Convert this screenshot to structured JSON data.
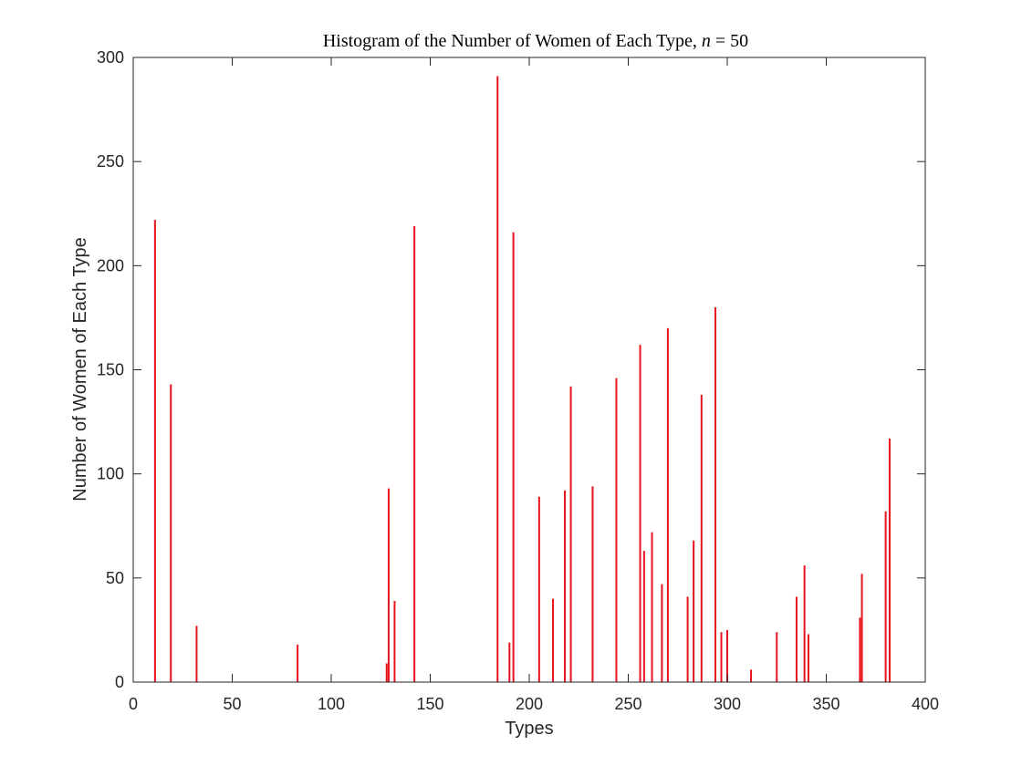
{
  "chart_data": {
    "type": "bar",
    "title": "Histogram of the Number of Women of Each Type, ",
    "title_math_var": "n",
    "title_math_rest": " = 50",
    "xlabel": "Types",
    "ylabel": "Number of Women of Each Type",
    "xlim": [
      0,
      400
    ],
    "ylim": [
      0,
      300
    ],
    "xticks": [
      0,
      50,
      100,
      150,
      200,
      250,
      300,
      350,
      400
    ],
    "yticks": [
      0,
      50,
      100,
      150,
      200,
      250,
      300
    ],
    "grid": false,
    "bar_color": "#e8131b",
    "points": [
      {
        "x": 11,
        "y": 222
      },
      {
        "x": 19,
        "y": 143
      },
      {
        "x": 32,
        "y": 27
      },
      {
        "x": 83,
        "y": 18
      },
      {
        "x": 128,
        "y": 9
      },
      {
        "x": 129,
        "y": 93
      },
      {
        "x": 132,
        "y": 39
      },
      {
        "x": 142,
        "y": 219
      },
      {
        "x": 184,
        "y": 291
      },
      {
        "x": 190,
        "y": 19
      },
      {
        "x": 192,
        "y": 216
      },
      {
        "x": 205,
        "y": 89
      },
      {
        "x": 212,
        "y": 40
      },
      {
        "x": 218,
        "y": 92
      },
      {
        "x": 221,
        "y": 142
      },
      {
        "x": 232,
        "y": 94
      },
      {
        "x": 244,
        "y": 146
      },
      {
        "x": 256,
        "y": 162
      },
      {
        "x": 258,
        "y": 63
      },
      {
        "x": 262,
        "y": 72
      },
      {
        "x": 267,
        "y": 47
      },
      {
        "x": 270,
        "y": 170
      },
      {
        "x": 280,
        "y": 41
      },
      {
        "x": 283,
        "y": 68
      },
      {
        "x": 287,
        "y": 138
      },
      {
        "x": 294,
        "y": 180
      },
      {
        "x": 297,
        "y": 24
      },
      {
        "x": 300,
        "y": 25
      },
      {
        "x": 312,
        "y": 6
      },
      {
        "x": 325,
        "y": 24
      },
      {
        "x": 335,
        "y": 41
      },
      {
        "x": 339,
        "y": 56
      },
      {
        "x": 341,
        "y": 23
      },
      {
        "x": 367,
        "y": 31
      },
      {
        "x": 368,
        "y": 52
      },
      {
        "x": 380,
        "y": 82
      },
      {
        "x": 382,
        "y": 117
      }
    ]
  }
}
